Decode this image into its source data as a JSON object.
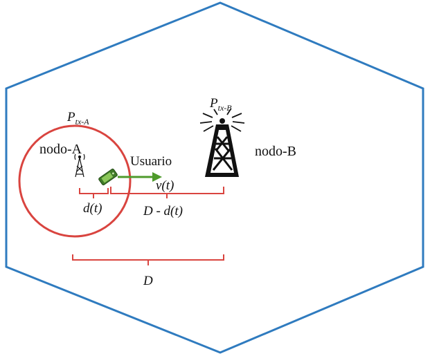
{
  "colors": {
    "hexagon": "#2f7bbf",
    "coverage_circle": "#d9443f",
    "brace": "#d9443f",
    "arrow": "#4e9a2b",
    "device": "#5d9e3a",
    "tower": "#111111"
  },
  "labels": {
    "ptx_a": {
      "main": "P",
      "sub": "tx-A"
    },
    "ptx_b": {
      "main": "P",
      "sub": "tx-B"
    },
    "nodo_a": "nodo-A",
    "nodo_b": "nodo-B",
    "usuario": "Usuario",
    "velocity": "v(t)",
    "distance_user": "d(t)",
    "distance_remaining": "D - d(t)",
    "distance_total": "D"
  },
  "icons": {
    "tower_a": "small-antenna-tower-icon",
    "tower_b": "broadcast-tower-icon",
    "user_device": "mobile-device-icon"
  }
}
